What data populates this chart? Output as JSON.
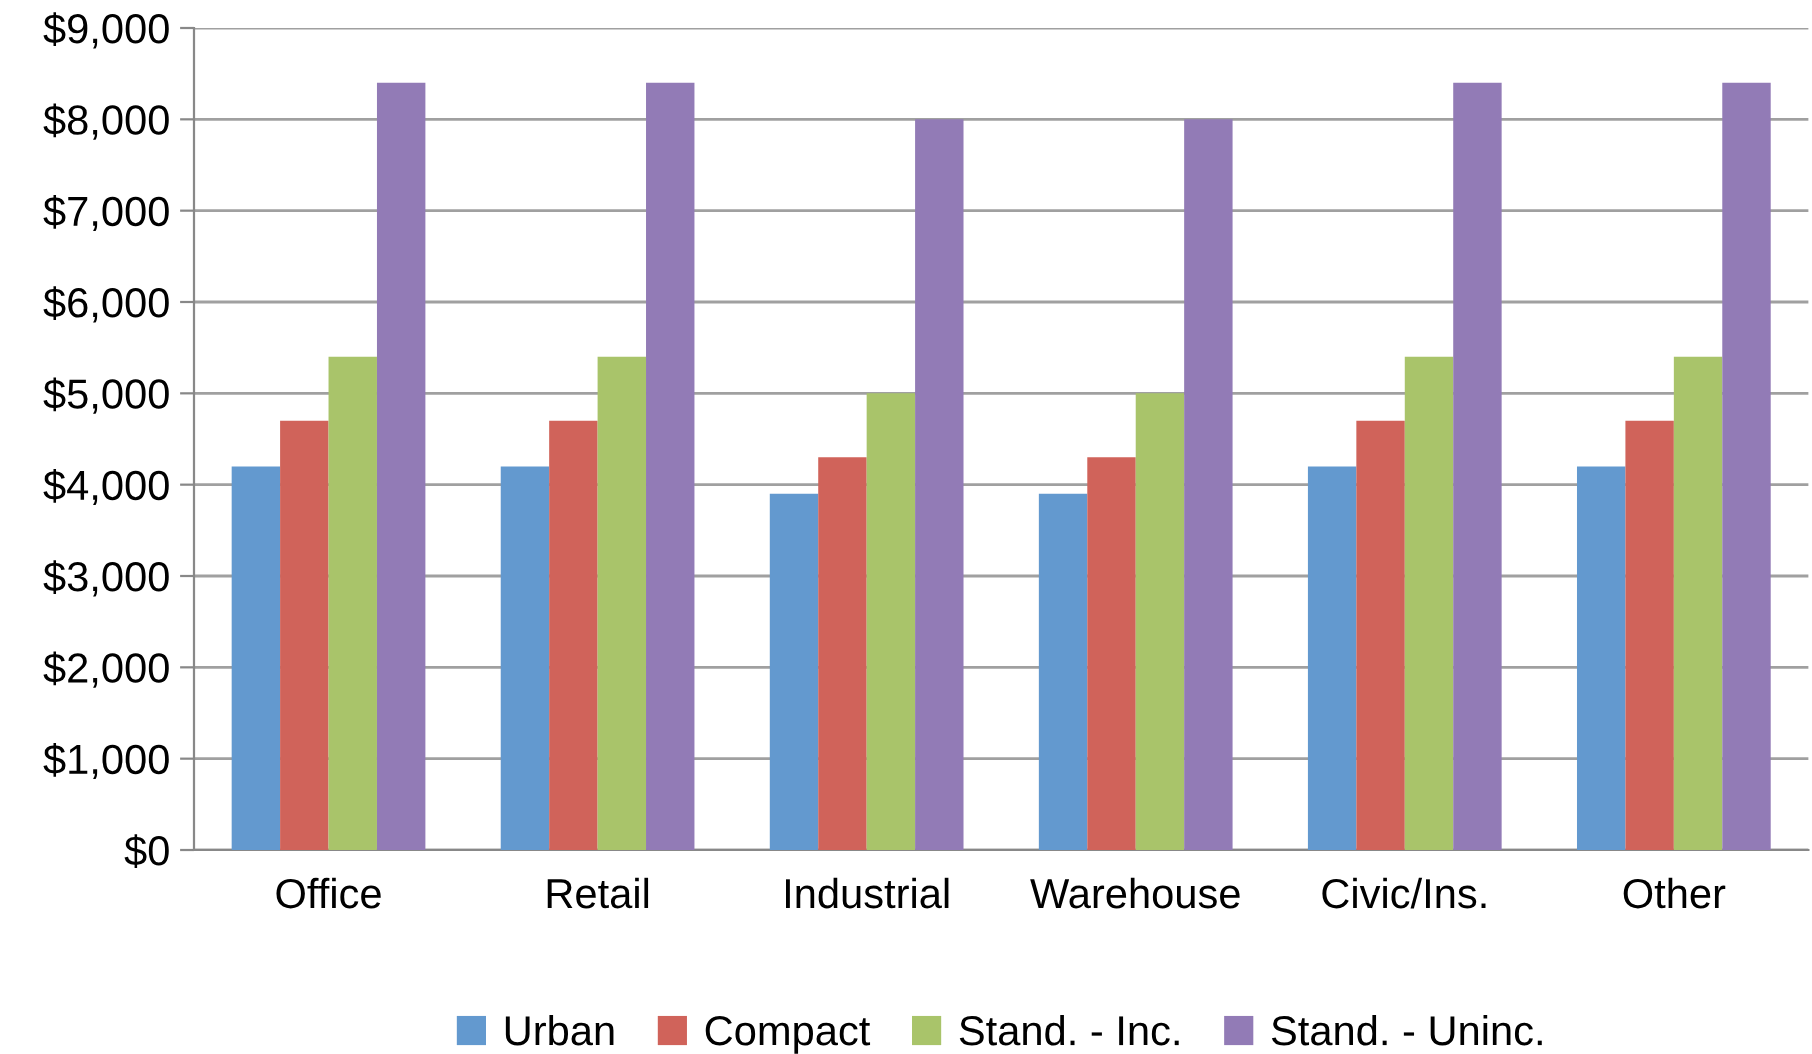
{
  "chart_data": {
    "type": "bar",
    "categories": [
      "Office",
      "Retail",
      "Industrial",
      "Warehouse",
      "Civic/Ins.",
      "Other"
    ],
    "series": [
      {
        "name": "Urban",
        "color": "#6399cf",
        "values": [
          4200,
          4200,
          3900,
          3900,
          4200,
          4200
        ]
      },
      {
        "name": "Compact",
        "color": "#d0635a",
        "values": [
          4700,
          4700,
          4300,
          4300,
          4700,
          4700
        ]
      },
      {
        "name": "Stand. - Inc.",
        "color": "#a9c46a",
        "values": [
          5400,
          5400,
          5000,
          5000,
          5400,
          5400
        ]
      },
      {
        "name": "Stand. - Uninc.",
        "color": "#927bb6",
        "values": [
          8400,
          8400,
          8000,
          8000,
          8400,
          8400
        ]
      }
    ],
    "ylim": [
      0,
      9000
    ],
    "yticks": [
      {
        "value": 0,
        "label": "$0"
      },
      {
        "value": 1000,
        "label": "$1,000"
      },
      {
        "value": 2000,
        "label": "$2,000"
      },
      {
        "value": 3000,
        "label": "$3,000"
      },
      {
        "value": 4000,
        "label": "$4,000"
      },
      {
        "value": 5000,
        "label": "$5,000"
      },
      {
        "value": 6000,
        "label": "$6,000"
      },
      {
        "value": 7000,
        "label": "$7,000"
      },
      {
        "value": 8000,
        "label": "$8,000"
      },
      {
        "value": 9000,
        "label": "$9,000"
      }
    ],
    "grid": "y",
    "legend": "bottom"
  }
}
